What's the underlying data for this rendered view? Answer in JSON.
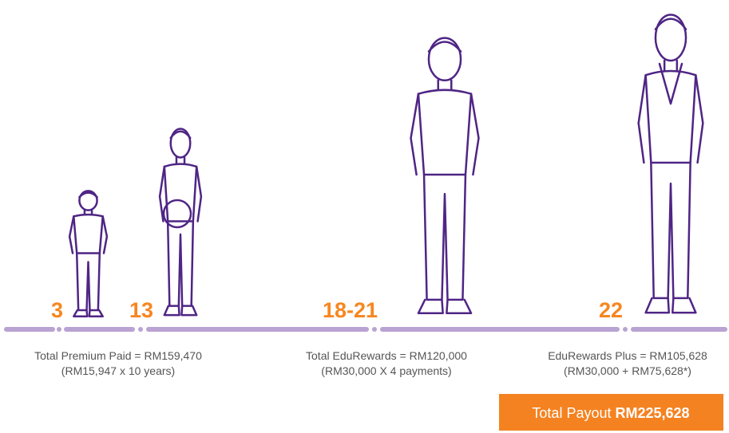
{
  "milestones": [
    {
      "age": "3"
    },
    {
      "age": "13"
    },
    {
      "age": "18-21"
    },
    {
      "age": "22"
    }
  ],
  "captions": [
    {
      "line1": "Total Premium Paid = RM159,470",
      "line2": "(RM15,947 x 10 years)"
    },
    {
      "line1": "Total EduRewards = RM120,000",
      "line2": "(RM30,000 X 4 payments)"
    },
    {
      "line1": "EduRewards Plus = RM105,628",
      "line2": "(RM30,000 + RM75,628*)"
    }
  ],
  "total": {
    "label": "Total Payout",
    "amount": "RM225,628"
  }
}
